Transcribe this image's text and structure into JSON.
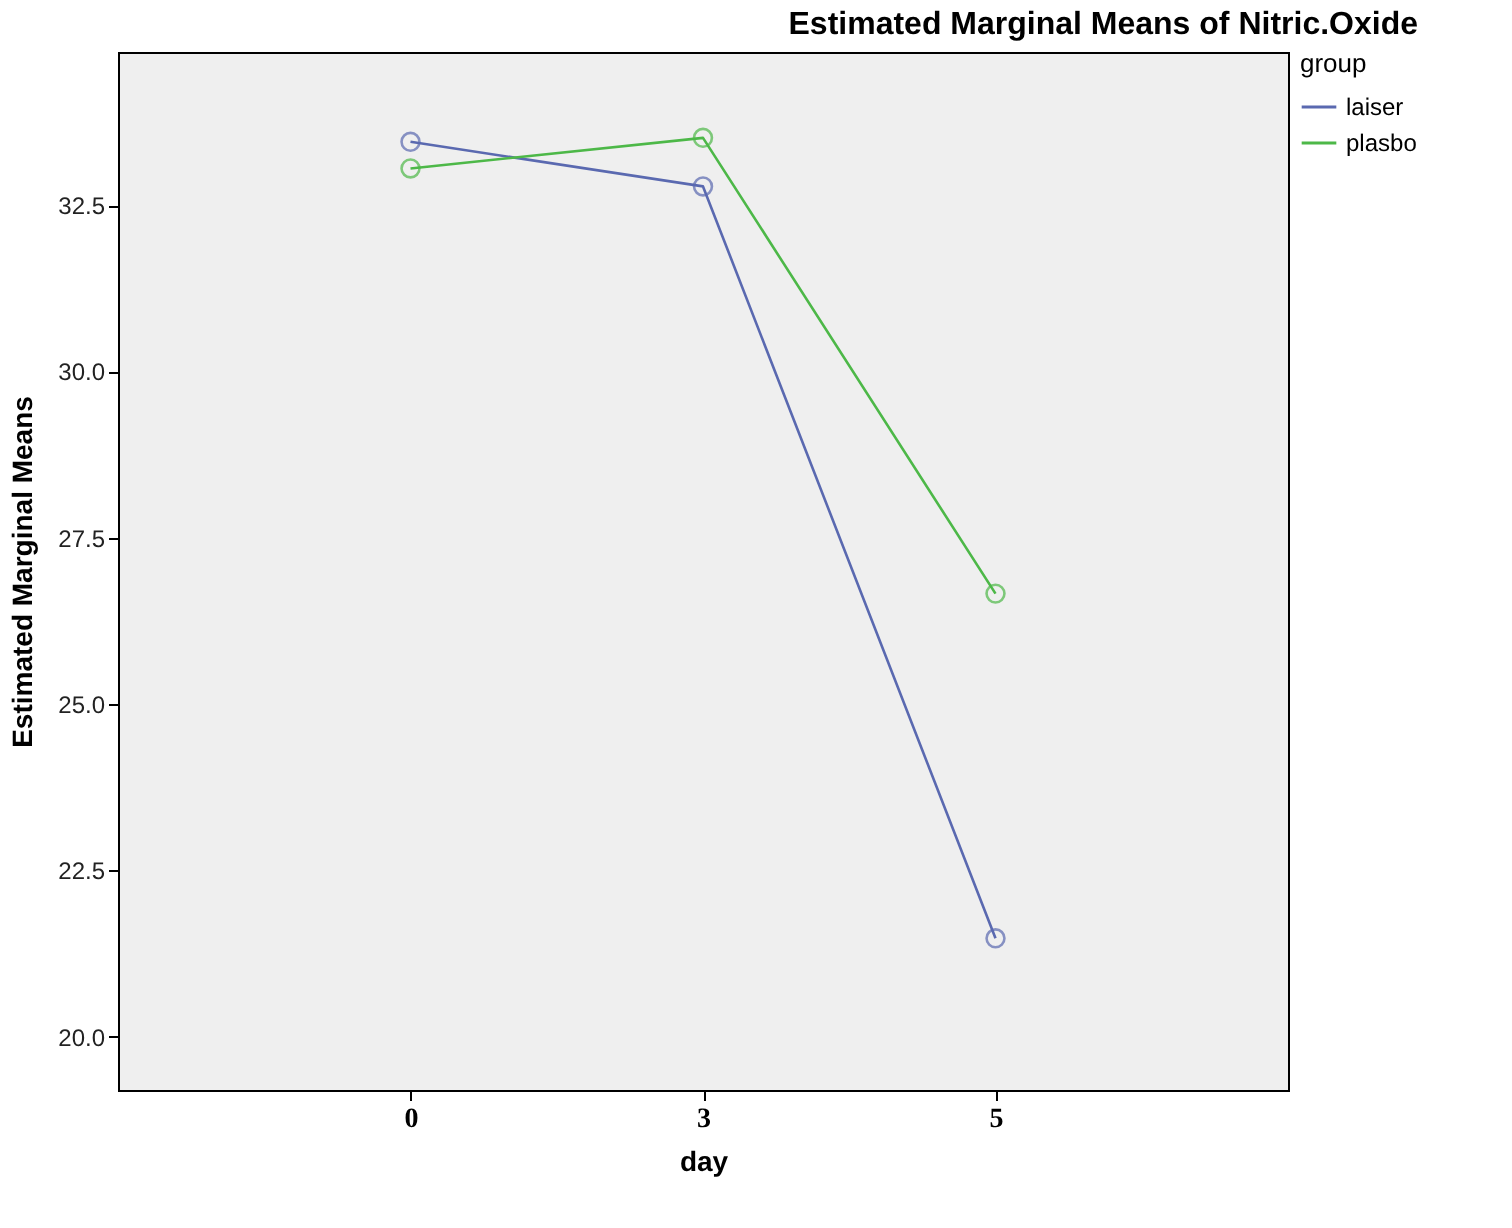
{
  "chart_data": {
    "type": "line",
    "title": "Estimated Marginal Means of Nitric.Oxide",
    "xlabel": "day",
    "ylabel": "Estimated Marginal Means",
    "legend_title": "group",
    "categories": [
      "0",
      "3",
      "5"
    ],
    "series": [
      {
        "name": "laiser",
        "color": "#5a69b0",
        "values": [
          33.45,
          32.78,
          21.48
        ]
      },
      {
        "name": "plasbo",
        "color": "#4db848",
        "values": [
          33.05,
          33.51,
          26.66
        ]
      }
    ],
    "ylim": [
      19.2,
      34.8
    ],
    "yticks": [
      {
        "value": 20,
        "label": "20.0"
      },
      {
        "value": 22.5,
        "label": "22.5"
      },
      {
        "value": 25,
        "label": "25.0"
      },
      {
        "value": 27.5,
        "label": "27.5"
      },
      {
        "value": 30,
        "label": "30.0"
      },
      {
        "value": 32.5,
        "label": "32.5"
      }
    ],
    "grid": false,
    "legend": "top right",
    "marker": "circle",
    "line_style": "solid"
  }
}
